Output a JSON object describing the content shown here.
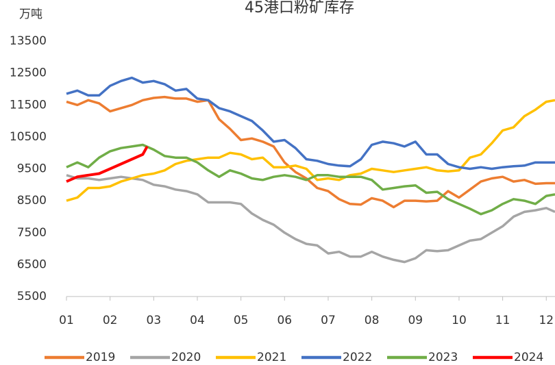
{
  "chart_data": {
    "type": "line",
    "title": "45港口粉矿库存",
    "y_label": "万吨",
    "x": [
      1,
      1.25,
      1.5,
      1.75,
      2,
      2.25,
      2.5,
      2.75,
      3,
      3.25,
      3.5,
      3.75,
      4,
      4.25,
      4.5,
      4.75,
      5,
      5.25,
      5.5,
      5.75,
      6,
      6.25,
      6.5,
      6.75,
      7,
      7.25,
      7.5,
      7.75,
      8,
      8.25,
      8.5,
      8.75,
      9,
      9.25,
      9.5,
      9.75,
      10,
      10.25,
      10.5,
      10.75,
      11,
      11.25,
      11.5,
      11.75,
      12,
      12.2
    ],
    "xlim": [
      1,
      12.2
    ],
    "xticks": [
      {
        "value": 1,
        "label": "01"
      },
      {
        "value": 2,
        "label": "02"
      },
      {
        "value": 3,
        "label": "03"
      },
      {
        "value": 4,
        "label": "04"
      },
      {
        "value": 5,
        "label": "05"
      },
      {
        "value": 6,
        "label": "06"
      },
      {
        "value": 7,
        "label": "07"
      },
      {
        "value": 8,
        "label": "08"
      },
      {
        "value": 9,
        "label": "09"
      },
      {
        "value": 10,
        "label": "10"
      },
      {
        "value": 11,
        "label": "11"
      },
      {
        "value": 12,
        "label": "12"
      }
    ],
    "ylim": [
      5500,
      13500
    ],
    "yticks": [
      5500,
      6500,
      7500,
      8500,
      9500,
      10500,
      11500,
      12500,
      13500
    ],
    "grid": false,
    "series": [
      {
        "name": "2019",
        "color": "#ed7d31",
        "values": [
          11600,
          11500,
          11650,
          11550,
          11300,
          11400,
          11500,
          11650,
          11720,
          11750,
          11700,
          11700,
          11600,
          11650,
          11050,
          10750,
          10400,
          10450,
          10350,
          10200,
          9700,
          9400,
          9200,
          8900,
          8800,
          8550,
          8400,
          8380,
          8580,
          8500,
          8300,
          8500,
          8500,
          8480,
          8500,
          8800,
          8600,
          8850,
          9100,
          9200,
          9250,
          9100,
          9150,
          9030,
          9050,
          9050
        ]
      },
      {
        "name": "2020",
        "color": "#a5a5a5",
        "values": [
          9300,
          9200,
          9200,
          9150,
          9200,
          9250,
          9200,
          9150,
          9000,
          8950,
          8850,
          8800,
          8700,
          8450,
          8450,
          8450,
          8400,
          8100,
          7900,
          7750,
          7500,
          7300,
          7150,
          7100,
          6850,
          6900,
          6750,
          6750,
          6900,
          6750,
          6650,
          6580,
          6700,
          6950,
          6920,
          6950,
          7100,
          7250,
          7300,
          7500,
          7700,
          8000,
          8150,
          8200,
          8270,
          8150
        ]
      },
      {
        "name": "2021",
        "color": "#ffc000",
        "values": [
          8500,
          8600,
          8900,
          8900,
          8950,
          9100,
          9200,
          9300,
          9350,
          9450,
          9650,
          9750,
          9800,
          9850,
          9850,
          10000,
          9950,
          9800,
          9850,
          9550,
          9550,
          9600,
          9500,
          9150,
          9200,
          9150,
          9300,
          9350,
          9500,
          9450,
          9400,
          9450,
          9500,
          9550,
          9450,
          9420,
          9450,
          9850,
          9950,
          10300,
          10700,
          10800,
          11150,
          11350,
          11600,
          11650
        ]
      },
      {
        "name": "2022",
        "color": "#4472c4",
        "values": [
          11850,
          11950,
          11800,
          11800,
          12100,
          12250,
          12350,
          12200,
          12250,
          12150,
          11950,
          12000,
          11700,
          11650,
          11400,
          11300,
          11150,
          11000,
          10700,
          10350,
          10400,
          10150,
          9800,
          9750,
          9650,
          9600,
          9580,
          9800,
          10250,
          10350,
          10300,
          10200,
          10350,
          9950,
          9950,
          9650,
          9550,
          9500,
          9550,
          9500,
          9550,
          9580,
          9600,
          9700,
          9700,
          9700
        ]
      },
      {
        "name": "2023",
        "color": "#70ad47",
        "values": [
          9550,
          9700,
          9550,
          9850,
          10050,
          10150,
          10200,
          10250,
          10100,
          9900,
          9850,
          9850,
          9700,
          9450,
          9250,
          9450,
          9350,
          9200,
          9150,
          9250,
          9300,
          9250,
          9150,
          9300,
          9300,
          9250,
          9250,
          9250,
          9150,
          8850,
          8900,
          8950,
          8980,
          8750,
          8780,
          8550,
          8400,
          8250,
          8080,
          8200,
          8400,
          8550,
          8500,
          8400,
          8650,
          8700
        ]
      },
      {
        "name": "2024",
        "color": "#ff0000",
        "x": [
          1,
          1.25,
          1.5,
          1.75,
          2,
          2.25,
          2.5,
          2.75,
          2.85
        ],
        "values": [
          9100,
          9250,
          9300,
          9350,
          9500,
          9650,
          9800,
          9950,
          10200
        ]
      }
    ]
  }
}
